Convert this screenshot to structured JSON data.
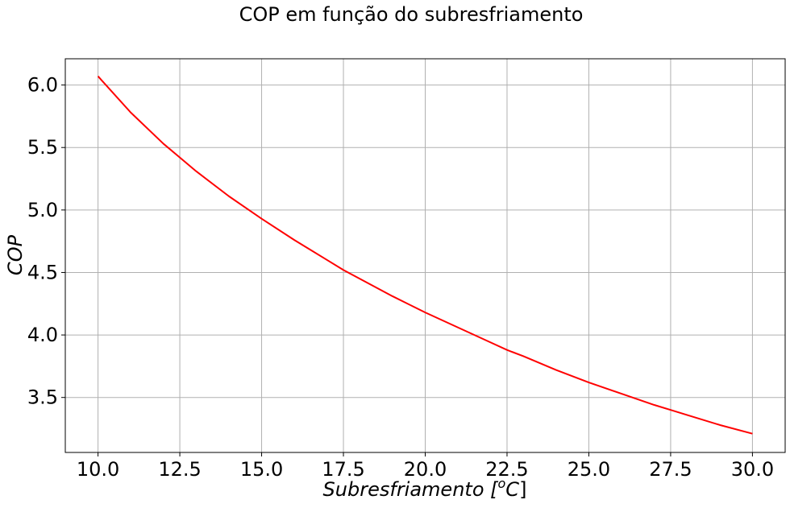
{
  "chart_data": {
    "type": "line",
    "title": "COP em função do subresfriamento",
    "xlabel": {
      "main": "Subresfriamento [",
      "sup": "o",
      "unit": "C",
      "close": "]"
    },
    "ylabel": "COP",
    "xlim": [
      9.0,
      31.0
    ],
    "ylim": [
      3.06,
      6.21
    ],
    "xticks": [
      10.0,
      12.5,
      15.0,
      17.5,
      20.0,
      22.5,
      25.0,
      27.5,
      30.0
    ],
    "xtick_labels": [
      "10.0",
      "12.5",
      "15.0",
      "17.5",
      "20.0",
      "22.5",
      "25.0",
      "27.5",
      "30.0"
    ],
    "yticks": [
      3.5,
      4.0,
      4.5,
      5.0,
      5.5,
      6.0
    ],
    "ytick_labels": [
      "3.5",
      "4.0",
      "4.5",
      "5.0",
      "5.5",
      "6.0"
    ],
    "grid": true,
    "series": [
      {
        "color": "#ff0000",
        "x": [
          10.0,
          11.0,
          12.0,
          12.5,
          13.0,
          14.0,
          15.0,
          16.0,
          17.0,
          17.5,
          18.0,
          19.0,
          20.0,
          21.0,
          22.0,
          22.5,
          23.0,
          24.0,
          25.0,
          26.0,
          27.0,
          27.5,
          28.0,
          29.0,
          30.0
        ],
        "y": [
          6.07,
          5.78,
          5.53,
          5.42,
          5.31,
          5.11,
          4.93,
          4.76,
          4.6,
          4.52,
          4.45,
          4.31,
          4.18,
          4.06,
          3.94,
          3.88,
          3.83,
          3.72,
          3.62,
          3.53,
          3.44,
          3.4,
          3.36,
          3.28,
          3.21
        ]
      }
    ]
  }
}
